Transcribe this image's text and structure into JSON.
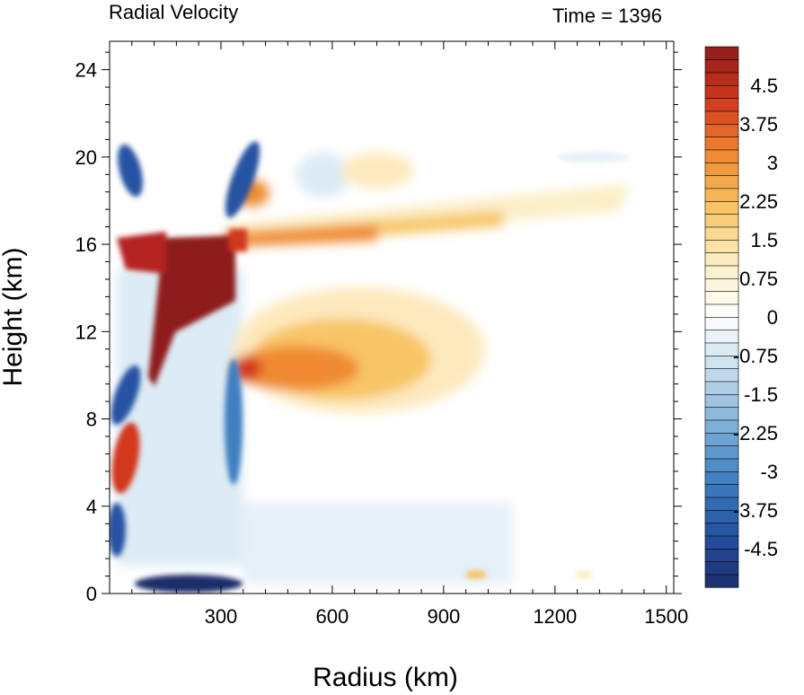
{
  "header": {
    "left_title": "Radial Velocity",
    "right_title": "Time = 1396"
  },
  "chart_data": {
    "type": "heatmap",
    "title": "Radial Velocity",
    "subtitle": "Time = 1396",
    "xlabel": "Radius (km)",
    "ylabel": "Height (km)",
    "xlim": [
      0,
      1520
    ],
    "ylim": [
      0,
      25.3
    ],
    "xticks": [
      300,
      600,
      900,
      1200,
      1500
    ],
    "xtick_labels": [
      "300",
      "600",
      "900",
      "1200",
      "1500"
    ],
    "yticks": [
      0,
      4,
      8,
      12,
      16,
      20,
      24
    ],
    "ytick_labels": [
      "0",
      "4",
      "8",
      "12",
      "16",
      "20",
      "24"
    ],
    "colorbar": {
      "min": -5.25,
      "max": 5.25,
      "step": 0.25,
      "tick_values": [
        4.5,
        3.75,
        3,
        2.25,
        1.5,
        0.75,
        0,
        -0.75,
        -1.5,
        -2.25,
        -3,
        -3.75,
        -4.5
      ],
      "tick_labels": [
        "4.5",
        "3.75",
        "3",
        "2.25",
        "1.5",
        "0.75",
        "0",
        "-0.75",
        "-1.5",
        "-2.25",
        "-3",
        "-3.75",
        "-4.5"
      ],
      "colors_low_to_high": [
        "#1b2d6b",
        "#2553a3",
        "#3f7fc0",
        "#7fb0d8",
        "#c4dcec",
        "#ffffff",
        "#fbefc6",
        "#f8c566",
        "#ef8a31",
        "#d2391f",
        "#8e1a1a"
      ]
    },
    "features": [
      {
        "name": "upper outflow jet",
        "x": [
          340,
          1450
        ],
        "y": 16.4,
        "peak": 3.5
      },
      {
        "name": "inner core outflow",
        "x": [
          120,
          340
        ],
        "y": [
          12,
          16
        ],
        "peak": 5.25
      },
      {
        "name": "mid-level outflow",
        "x": [
          340,
          700
        ],
        "y": 10,
        "peak": 2.5
      },
      {
        "name": "boundary layer inflow",
        "x": [
          100,
          300
        ],
        "y": 0.3,
        "peak": -5
      }
    ]
  }
}
